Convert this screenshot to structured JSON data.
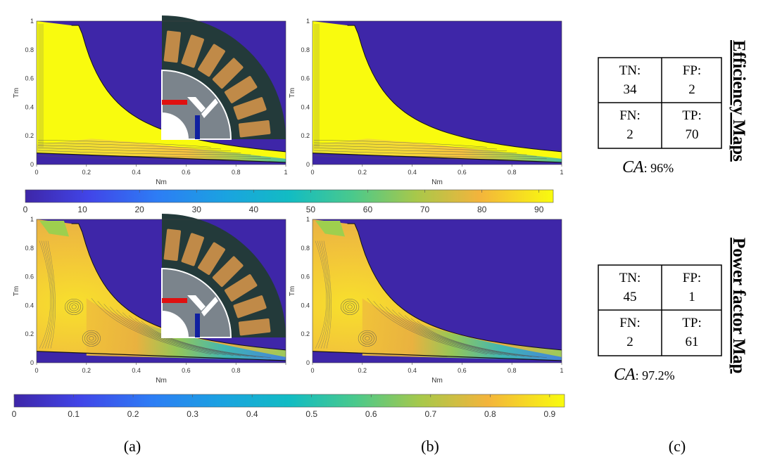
{
  "chart_data": [
    {
      "type": "heatmap",
      "panel": "(a)",
      "row": "efficiency",
      "xlabel": "Nm",
      "ylabel": "Tm",
      "xlim": [
        0,
        1
      ],
      "ylim": [
        0,
        1
      ],
      "xticks": [
        "0",
        "0.2",
        "0.4",
        "0.6",
        "0.8",
        "1"
      ],
      "yticks": [
        "0",
        "0.2",
        "0.4",
        "0.6",
        "0.8",
        "1"
      ],
      "has_motor_inset": true
    },
    {
      "type": "heatmap",
      "panel": "(b)",
      "row": "efficiency",
      "xlabel": "Nm",
      "ylabel": "Tm",
      "xlim": [
        0,
        1
      ],
      "ylim": [
        0,
        1
      ],
      "xticks": [
        "0",
        "0.2",
        "0.4",
        "0.6",
        "0.8",
        "1"
      ],
      "yticks": [
        "0",
        "0.2",
        "0.4",
        "0.6",
        "0.8",
        "1"
      ],
      "has_motor_inset": false
    },
    {
      "type": "heatmap",
      "panel": "(a)",
      "row": "power-factor",
      "xlabel": "Nm",
      "ylabel": "Tm",
      "xlim": [
        0,
        1
      ],
      "ylim": [
        0,
        1
      ],
      "xticks": [
        "0",
        "0.2",
        "0.4",
        "0.6",
        "0.8",
        ""
      ],
      "yticks": [
        "0",
        "0.2",
        "0.4",
        "0.6",
        "0.8",
        "1"
      ],
      "has_motor_inset": true
    },
    {
      "type": "heatmap",
      "panel": "(b)",
      "row": "power-factor",
      "xlabel": "Nm",
      "ylabel": "Tm",
      "xlim": [
        0,
        1
      ],
      "ylim": [
        0,
        1
      ],
      "xticks": [
        "0",
        "0.2",
        "0.4",
        "0.6",
        "0.8",
        "1"
      ],
      "yticks": [
        "0",
        "0.2",
        "0.4",
        "0.6",
        "0.8",
        "1"
      ],
      "has_motor_inset": false
    }
  ],
  "colorbars": {
    "efficiency": {
      "ticks": [
        "0",
        "10",
        "20",
        "30",
        "40",
        "50",
        "60",
        "70",
        "80",
        "90"
      ],
      "min": 0,
      "max": 92.5
    },
    "power_factor": {
      "ticks": [
        "0",
        "0.1",
        "0.2",
        "0.3",
        "0.4",
        "0.5",
        "0.6",
        "0.7",
        "0.8",
        "0.9"
      ],
      "min": 0,
      "max": 0.925
    }
  },
  "confusion": {
    "efficiency": {
      "tn_label": "TN:",
      "tn_value": "34",
      "fp_label": "FP:",
      "fp_value": "2",
      "fn_label": "FN:",
      "fn_value": "2",
      "tp_label": "TP:",
      "tp_value": "70",
      "ca_symbol": "CA",
      "ca_value": ": 96%"
    },
    "power_factor": {
      "tn_label": "TN:",
      "tn_value": "45",
      "fp_label": "FP:",
      "fp_value": "1",
      "fn_label": "FN:",
      "fn_value": "2",
      "tp_label": "TP:",
      "tp_value": "61",
      "ca_symbol": "CA",
      "ca_value": ": 97.2%"
    }
  },
  "side_titles": {
    "efficiency": "Efficiency Maps",
    "power_factor": "Power factor Map"
  },
  "captions": {
    "a": "(a)",
    "b": "(b)",
    "c": "(c)"
  },
  "colors": {
    "background_region": "#3e26a8",
    "high": "#f9fb0e",
    "orange": "#f5b440",
    "green": "#9ecf4e",
    "teal": "#2bbbb0",
    "blue": "#2e86e8",
    "stator": "#233a3a",
    "slot": "#c08a48",
    "rotor": "#7b848c",
    "magnet_red": "#e01010",
    "magnet_blue": "#1020a0"
  }
}
